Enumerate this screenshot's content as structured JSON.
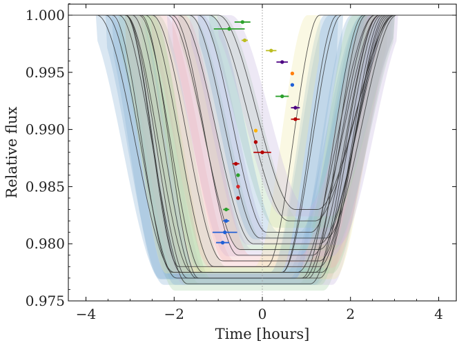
{
  "chart_data": {
    "type": "line",
    "xlabel": "Time [hours]",
    "ylabel": "Relative flux",
    "xlim": [
      -4.4,
      4.4
    ],
    "ylim": [
      0.975,
      1.001
    ],
    "xticks": [
      -4,
      -2,
      0,
      2,
      4
    ],
    "xtick_labels": [
      "−4",
      "−2",
      "0",
      "2",
      "4"
    ],
    "yticks": [
      0.975,
      0.98,
      0.985,
      0.99,
      0.995,
      1.0
    ],
    "ytick_labels": [
      "0.975",
      "0.980",
      "0.985",
      "0.990",
      "0.995",
      "1.000"
    ],
    "reference_line_x": 0,
    "grid": false,
    "transits": [
      {
        "center": -0.6,
        "half_width": 3.15,
        "ingress": 1.75,
        "depth": 0.0225,
        "band": "#8cb4d6"
      },
      {
        "center": -0.5,
        "half_width": 3.05,
        "ingress": 1.6,
        "depth": 0.023,
        "band": "#8cb4d6"
      },
      {
        "center": -0.3,
        "half_width": 2.95,
        "ingress": 1.55,
        "depth": 0.0235,
        "band": "#a8d4a8"
      },
      {
        "center": -0.2,
        "half_width": 2.9,
        "ingress": 1.5,
        "depth": 0.0225,
        "band": "#f2b4b4"
      },
      {
        "center": -0.1,
        "half_width": 2.85,
        "ingress": 1.45,
        "depth": 0.023,
        "band": "#c8b8e0"
      },
      {
        "center": 0.0,
        "half_width": 2.8,
        "ingress": 1.45,
        "depth": 0.0225,
        "band": "#f0e8a8"
      },
      {
        "center": -0.4,
        "half_width": 2.7,
        "ingress": 1.4,
        "depth": 0.023,
        "band": "#8cb4d6"
      },
      {
        "center": 0.1,
        "half_width": 2.75,
        "ingress": 1.55,
        "depth": 0.022,
        "band": "#a8d4a8"
      },
      {
        "center": -0.8,
        "half_width": 2.6,
        "ingress": 1.35,
        "depth": 0.0225,
        "band": "#8cb4d6"
      },
      {
        "center": 0.2,
        "half_width": 2.7,
        "ingress": 1.6,
        "depth": 0.0215,
        "band": "#f2b4b4"
      },
      {
        "center": -0.2,
        "half_width": 2.55,
        "ingress": 1.3,
        "depth": 0.023,
        "band": "#a8d4a8"
      },
      {
        "center": 0.4,
        "half_width": 2.55,
        "ingress": 1.65,
        "depth": 0.0205,
        "band": "#c8b8e0"
      },
      {
        "center": -0.7,
        "half_width": 2.4,
        "ingress": 1.25,
        "depth": 0.0225,
        "band": "#8cb4d6"
      },
      {
        "center": 0.55,
        "half_width": 2.45,
        "ingress": 1.7,
        "depth": 0.02,
        "band": "#a8d4a8"
      },
      {
        "center": 0.3,
        "half_width": 2.35,
        "ingress": 1.5,
        "depth": 0.021,
        "band": "#f2b4b4"
      },
      {
        "center": 0.7,
        "half_width": 2.35,
        "ingress": 1.6,
        "depth": 0.0195,
        "band": "#c8b8e0"
      },
      {
        "center": 0.9,
        "half_width": 2.1,
        "ingress": 1.8,
        "depth": 0.018,
        "band": "#a8d4a8"
      },
      {
        "center": 0.6,
        "half_width": 2.05,
        "ingress": 1.55,
        "depth": 0.019,
        "band": "#8cb4d6"
      },
      {
        "center": -0.9,
        "half_width": 2.2,
        "ingress": 1.2,
        "depth": 0.022,
        "band": "#f0e8a8"
      },
      {
        "center": 1.0,
        "half_width": 2.0,
        "ingress": 1.75,
        "depth": 0.017,
        "band": "#c8b8e0"
      }
    ],
    "points": [
      {
        "x": -0.45,
        "y": 0.9994,
        "xerr": 0.18,
        "color": "#2ca02c"
      },
      {
        "x": -0.75,
        "y": 0.9988,
        "xerr": 0.35,
        "color": "#2ca02c"
      },
      {
        "x": -0.4,
        "y": 0.9978,
        "xerr": 0.07,
        "color": "#bcbd22"
      },
      {
        "x": 0.2,
        "y": 0.9969,
        "xerr": 0.12,
        "color": "#bcbd22"
      },
      {
        "x": 0.45,
        "y": 0.9959,
        "xerr": 0.13,
        "color": "#4b0082"
      },
      {
        "x": 0.68,
        "y": 0.9949,
        "xerr": 0.0,
        "color": "#ff7f0e"
      },
      {
        "x": 0.68,
        "y": 0.9939,
        "xerr": 0.0,
        "color": "#1f5fd6"
      },
      {
        "x": 0.45,
        "y": 0.9929,
        "xerr": 0.15,
        "color": "#2ca02c"
      },
      {
        "x": 0.75,
        "y": 0.9919,
        "xerr": 0.1,
        "color": "#4b0082"
      },
      {
        "x": 0.75,
        "y": 0.9909,
        "xerr": 0.1,
        "color": "#b40000"
      },
      {
        "x": -0.15,
        "y": 0.9899,
        "xerr": 0.0,
        "color": "#ffb300"
      },
      {
        "x": -0.15,
        "y": 0.9889,
        "xerr": 0.0,
        "color": "#b40000"
      },
      {
        "x": 0.0,
        "y": 0.988,
        "xerr": 0.2,
        "color": "#b40000"
      },
      {
        "x": -0.6,
        "y": 0.987,
        "xerr": 0.08,
        "color": "#b40000"
      },
      {
        "x": -0.55,
        "y": 0.986,
        "xerr": 0.0,
        "color": "#2ca02c"
      },
      {
        "x": -0.55,
        "y": 0.985,
        "xerr": 0.0,
        "color": "#d62728"
      },
      {
        "x": -0.55,
        "y": 0.984,
        "xerr": 0.0,
        "color": "#b40000"
      },
      {
        "x": -0.82,
        "y": 0.983,
        "xerr": 0.07,
        "color": "#2ca02c"
      },
      {
        "x": -0.82,
        "y": 0.982,
        "xerr": 0.07,
        "color": "#1f5fd6"
      },
      {
        "x": -0.85,
        "y": 0.981,
        "xerr": 0.28,
        "color": "#1f5fd6"
      },
      {
        "x": -0.9,
        "y": 0.9801,
        "xerr": 0.15,
        "color": "#1f5fd6"
      }
    ]
  }
}
